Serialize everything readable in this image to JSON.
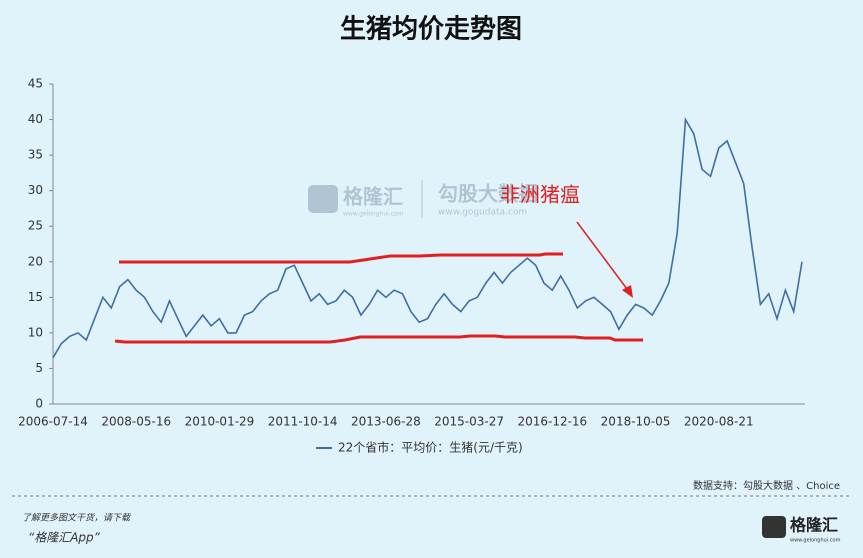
{
  "chart_data": {
    "type": "line",
    "title": "生猪均价走势图",
    "categories": [
      "2006-07-14",
      null,
      null,
      null,
      null,
      null,
      null,
      null,
      null,
      null,
      "2008-05-16",
      null,
      null,
      null,
      null,
      null,
      null,
      null,
      null,
      null,
      "2010-01-29",
      null,
      null,
      null,
      null,
      null,
      null,
      null,
      null,
      null,
      "2011-10-14",
      null,
      null,
      null,
      null,
      null,
      null,
      null,
      null,
      null,
      "2013-06-28",
      null,
      null,
      null,
      null,
      null,
      null,
      null,
      null,
      null,
      "2015-03-27",
      null,
      null,
      null,
      null,
      null,
      null,
      null,
      null,
      null,
      "2016-12-16",
      null,
      null,
      null,
      null,
      null,
      null,
      null,
      null,
      null,
      "2018-10-05",
      null,
      null,
      null,
      null,
      null,
      null,
      null,
      null,
      null,
      "2020-08-21",
      null,
      null,
      null,
      null,
      null,
      null,
      null,
      null,
      null,
      null
    ],
    "series": [
      {
        "name": "22个省市：平均价：生猪(元/千克)",
        "color": "#3f6ea6",
        "values": [
          6.5,
          8.5,
          9.5,
          10,
          9,
          12,
          15,
          13.5,
          16.5,
          17.5,
          16,
          15,
          13,
          11.5,
          14.5,
          12,
          9.5,
          11,
          12.5,
          11,
          12,
          10,
          10,
          12.5,
          13,
          14.5,
          15.5,
          16,
          19,
          19.5,
          17,
          14.5,
          15.5,
          14,
          14.5,
          16,
          15,
          12.5,
          14,
          16,
          15,
          16,
          15.5,
          13,
          11.5,
          12,
          14,
          15.5,
          14,
          13,
          14.5,
          15,
          17,
          18.5,
          17,
          18.5,
          19.5,
          20.5,
          19.5,
          17,
          16,
          18,
          16,
          13.5,
          14.5,
          15,
          14,
          13,
          10.5,
          12.5,
          14,
          13.5,
          12.5,
          14.5,
          17,
          24,
          40,
          38,
          33,
          32,
          36,
          37,
          34,
          31,
          22,
          14,
          15.5,
          12,
          16,
          13,
          20
        ]
      }
    ],
    "ylim": [
      0,
      45
    ],
    "yticks": [
      0,
      5,
      10,
      15,
      20,
      25,
      30,
      35,
      40,
      45
    ],
    "annotation": "非洲猪瘟",
    "watermark": {
      "brand": "格隆汇",
      "brand_url": "www.gelonghui.com",
      "data_brand": "勾股大数据",
      "data_url": "www.gogudata.com"
    },
    "source": "数据支持：勾股大数据 、Choice"
  },
  "footer": {
    "prompt": "了解更多图文干货，请下载",
    "app": "“格隆汇App”",
    "logo": "格隆汇",
    "logo_url": "www.gelonghui.com"
  }
}
